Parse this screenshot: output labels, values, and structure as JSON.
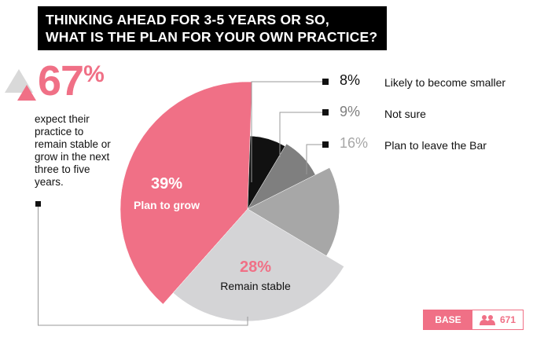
{
  "title": {
    "line1": "THINKING AHEAD FOR 3-5 YEARS OR SO,",
    "line2": "WHAT IS THE PLAN FOR YOUR OWN PRACTICE?"
  },
  "highlight": {
    "value": "67",
    "unit": "%",
    "caption": "expect their practice to remain stable or grow in the next three to five years."
  },
  "colors": {
    "pink": "#f07086",
    "black": "#111111",
    "dark_grey": "#7f7f7f",
    "mid_grey": "#a7a7a7",
    "light_grey": "#d4d4d6"
  },
  "legend": [
    {
      "pct": "8%",
      "label": "Likely to become smaller"
    },
    {
      "pct": "9%",
      "label": "Not sure"
    },
    {
      "pct": "16%",
      "label": "Plan to leave the Bar"
    }
  ],
  "slice_labels": {
    "grow_pct": "39%",
    "grow_label": "Plan to grow",
    "stable_pct": "28%",
    "stable_label": "Remain stable"
  },
  "base": {
    "label": "BASE",
    "icon": "people-icon",
    "value": "671"
  },
  "chart_data": {
    "type": "pie",
    "title": "THINKING AHEAD FOR 3-5 YEARS OR SO, WHAT IS THE PLAN FOR YOUR OWN PRACTICE?",
    "slices": [
      {
        "name": "Plan to grow",
        "value": 39,
        "color": "#f07086"
      },
      {
        "name": "Likely to become smaller",
        "value": 8,
        "color": "#111111"
      },
      {
        "name": "Not sure",
        "value": 9,
        "color": "#7f7f7f"
      },
      {
        "name": "Plan to leave the Bar",
        "value": 16,
        "color": "#a7a7a7"
      },
      {
        "name": "Remain stable",
        "value": 28,
        "color": "#d4d4d6"
      }
    ],
    "note": "variable-radius pie; radii scale with slice share"
  }
}
